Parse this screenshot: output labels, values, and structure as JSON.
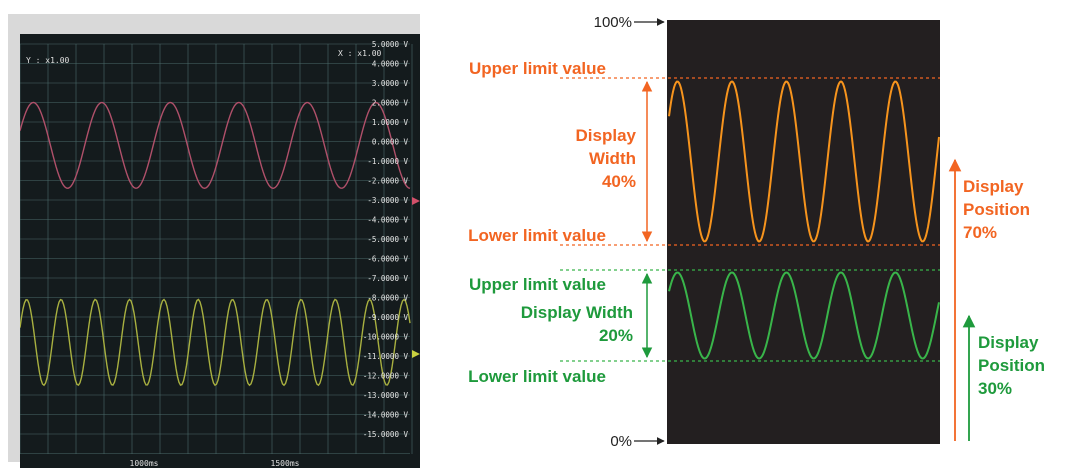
{
  "oscilloscope": {
    "y_scale": "Y : x1.00",
    "x_scale": "X : x1.00",
    "volt_labels": [
      "5.0000 V",
      "4.0000 V",
      "3.0000 V",
      "2.0000 V",
      "1.0000 V",
      "0.0000 V",
      "-1.0000 V",
      "-2.0000 V",
      "-3.0000 V",
      "-4.0000 V",
      "-5.0000 V",
      "-6.0000 V",
      "-7.0000 V",
      "-8.0000 V",
      "-9.0000 V",
      "-10.0000 V",
      "-11.0000 V",
      "-12.0000 V",
      "-13.0000 V",
      "-14.0000 V",
      "-15.0000 V"
    ],
    "time_labels": [
      "1000ms",
      "1500ms"
    ],
    "colors": {
      "background": "#141b1d",
      "grid": "#4a6a6a",
      "ch1": "#b0506a",
      "ch2": "#a8b040",
      "frame": "#cfd4d4"
    }
  },
  "diagram": {
    "top_marker": "100%",
    "bottom_marker": "0%",
    "orange": {
      "upper_label": "Upper limit value",
      "lower_label": "Lower limit value",
      "width_label": [
        "Display",
        "Width",
        "40%"
      ],
      "position_label": [
        "Display",
        "Position",
        "70%"
      ],
      "color": "#f26522"
    },
    "green": {
      "upper_label": "Upper limit value",
      "lower_label": "Lower limit value",
      "width_label": [
        "Display Width",
        "20%"
      ],
      "position_label": [
        "Display",
        "Position",
        "30%"
      ],
      "color": "#1e9a3c",
      "trace_color": "#39b54a"
    },
    "background": "#231f20"
  }
}
